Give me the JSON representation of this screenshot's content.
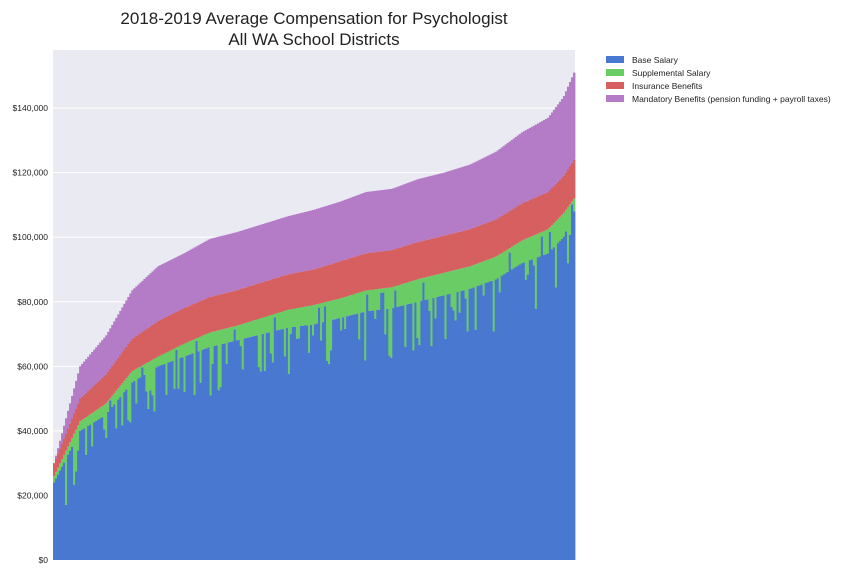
{
  "chart_data": {
    "type": "bar",
    "stacked": true,
    "title": "2018-2019 Average Compensation for Psychologist",
    "subtitle": "All WA School Districts",
    "xlabel": "",
    "ylabel": "",
    "ylim": [
      0,
      158000
    ],
    "yticks": [
      0,
      20000,
      40000,
      60000,
      80000,
      100000,
      120000,
      140000
    ],
    "ytick_labels": [
      "$0",
      "$20,000",
      "$40,000",
      "$60,000",
      "$80,000",
      "$100,000",
      "$120,000",
      "$140,000"
    ],
    "grid": true,
    "legend_position": "outside-top-right",
    "n_districts": 260,
    "series": [
      {
        "name": "Base Salary",
        "color": "#4878CF",
        "values": [
          24000,
          40000,
          45000,
          55000,
          60000,
          63000,
          66000,
          68000,
          70000,
          72000,
          73000,
          75000,
          77000,
          78000,
          80000,
          82000,
          84000,
          87000,
          92000,
          95000,
          100000,
          108000
        ]
      },
      {
        "name": "Supplemental Salary",
        "color": "#6ACC65",
        "values": [
          2000,
          3000,
          3500,
          3500,
          3000,
          4000,
          4500,
          4500,
          5000,
          5500,
          6000,
          6000,
          6500,
          6500,
          7000,
          7000,
          7000,
          7000,
          7000,
          7500,
          7500,
          4000
        ]
      },
      {
        "name": "Insurance Benefits",
        "color": "#D65F5F",
        "values": [
          4000,
          7000,
          9000,
          10000,
          11000,
          11000,
          11000,
          11000,
          11000,
          11000,
          11000,
          11500,
          11500,
          11500,
          11500,
          11500,
          11500,
          11500,
          11500,
          11500,
          11500,
          12000
        ]
      },
      {
        "name": "Mandatory Benefits (pension funding + payroll taxes)",
        "color": "#B47CC7",
        "values": [
          0,
          10000,
          12000,
          15000,
          17000,
          17000,
          18000,
          18000,
          18000,
          18000,
          18500,
          18500,
          19000,
          19000,
          19500,
          19500,
          20000,
          21000,
          22000,
          23000,
          24500,
          27000
        ]
      }
    ],
    "total_profile_note_fraction_points": [
      0.0,
      0.05,
      0.1,
      0.15,
      0.2,
      0.25,
      0.3,
      0.35,
      0.4,
      0.45,
      0.5,
      0.55,
      0.6,
      0.65,
      0.7,
      0.75,
      0.8,
      0.85,
      0.9,
      0.95,
      0.98,
      1.0
    ]
  }
}
